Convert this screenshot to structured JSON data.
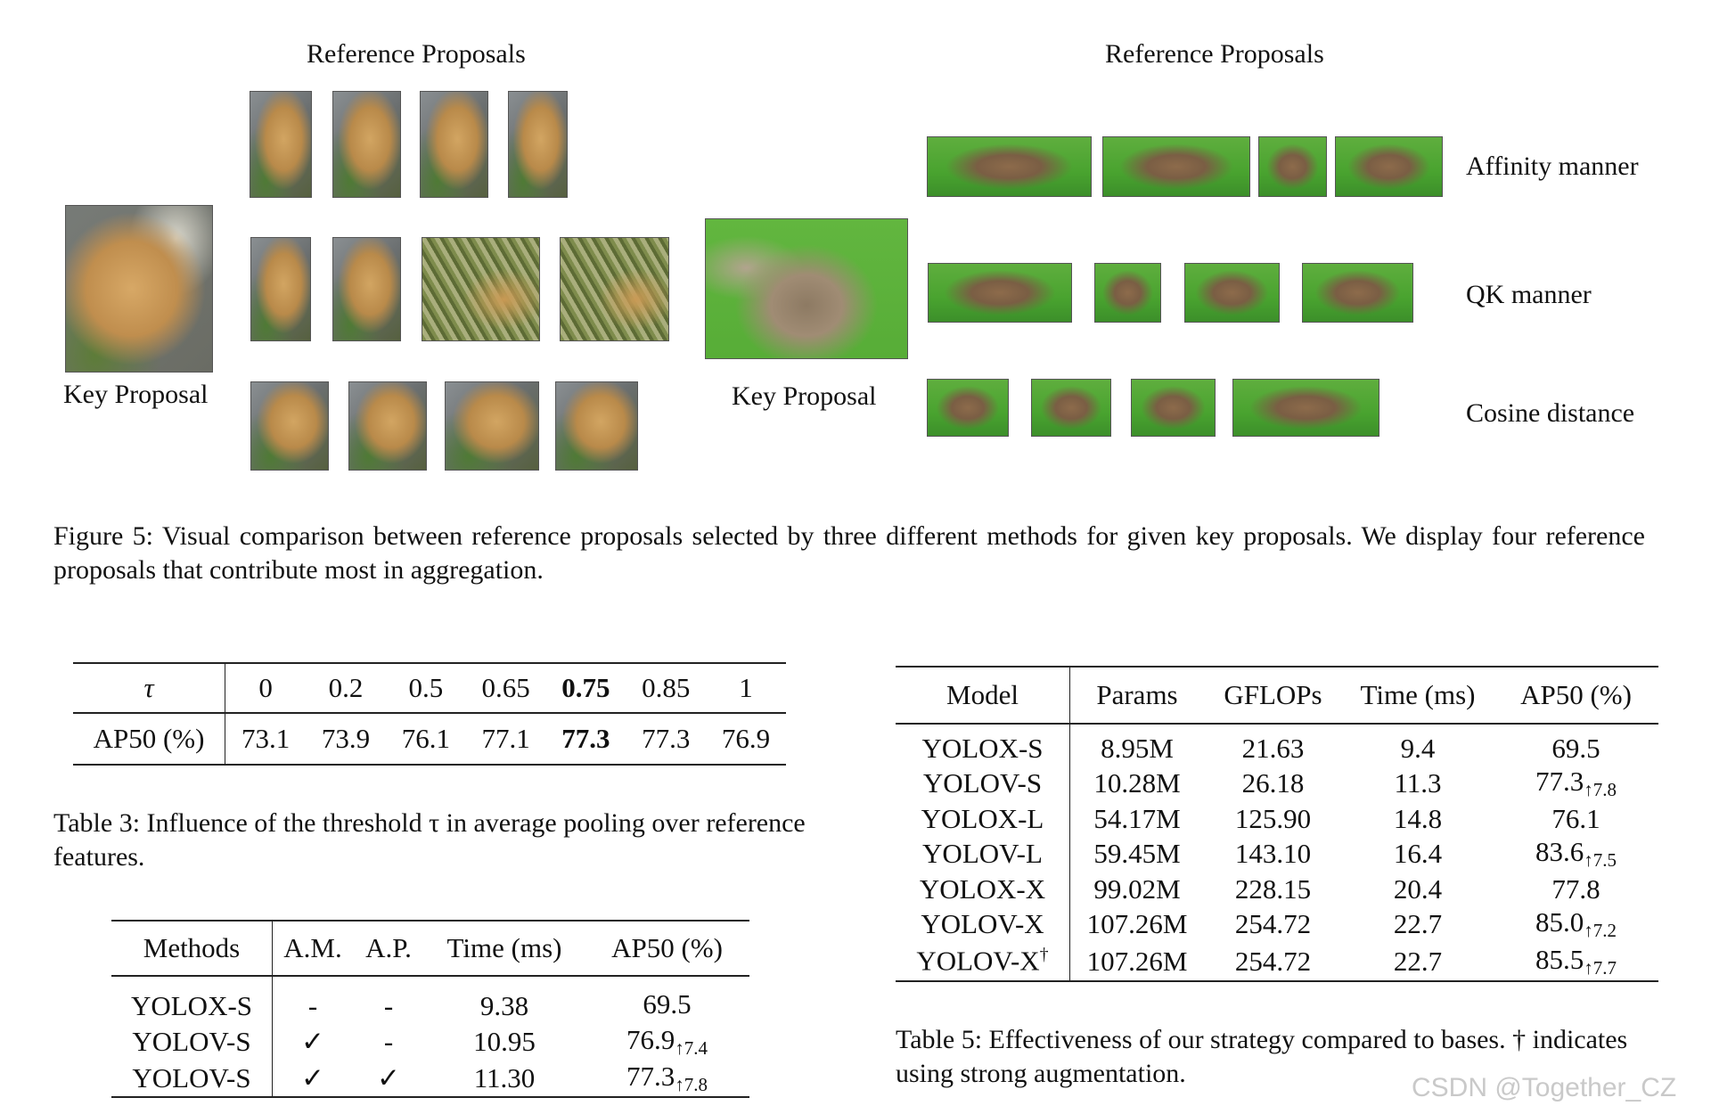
{
  "figure": {
    "left_panel": {
      "ref_title": "Reference Proposals",
      "key_label": "Key Proposal"
    },
    "right_panel": {
      "ref_title": "Reference Proposals",
      "key_label": "Key Proposal",
      "rows": [
        "Affinity manner",
        "QK manner",
        "Cosine distance"
      ]
    },
    "caption": "Figure 5: Visual comparison between reference proposals selected by three different methods for given key proposals. We display four reference proposals that contribute most in aggregation."
  },
  "table3": {
    "header_label": "τ",
    "row_label": "AP50 (%)",
    "taus": [
      "0",
      "0.2",
      "0.5",
      "0.65",
      "0.75",
      "0.85",
      "1"
    ],
    "ap50": [
      "73.1",
      "73.9",
      "76.1",
      "77.1",
      "77.3",
      "77.3",
      "76.9"
    ],
    "caption": "Table 3: Influence of the threshold τ in average pooling over reference features."
  },
  "table4": {
    "headers": [
      "Methods",
      "A.M.",
      "A.P.",
      "Time (ms)",
      "AP50 (%)"
    ],
    "rows": [
      {
        "method": "YOLOX-S",
        "am": "-",
        "ap": "-",
        "time": "9.38",
        "ap50": "69.5",
        "gain": ""
      },
      {
        "method": "YOLOV-S",
        "am": "✓",
        "ap": "-",
        "time": "10.95",
        "ap50": "76.9",
        "gain": "↑7.4"
      },
      {
        "method": "YOLOV-S",
        "am": "✓",
        "ap": "✓",
        "time": "11.30",
        "ap50": "77.3",
        "gain": "↑7.8"
      }
    ]
  },
  "table5": {
    "headers": [
      "Model",
      "Params",
      "GFLOPs",
      "Time (ms)",
      "AP50 (%)"
    ],
    "rows": [
      {
        "model": "YOLOX-S",
        "dagger": "",
        "params": "8.95M",
        "gflops": "21.63",
        "time": "9.4",
        "ap50": "69.5",
        "gain": ""
      },
      {
        "model": "YOLOV-S",
        "dagger": "",
        "params": "10.28M",
        "gflops": "26.18",
        "time": "11.3",
        "ap50": "77.3",
        "gain": "↑7.8"
      },
      {
        "model": "YOLOX-L",
        "dagger": "",
        "params": "54.17M",
        "gflops": "125.90",
        "time": "14.8",
        "ap50": "76.1",
        "gain": ""
      },
      {
        "model": "YOLOV-L",
        "dagger": "",
        "params": "59.45M",
        "gflops": "143.10",
        "time": "16.4",
        "ap50": "83.6",
        "gain": "↑7.5"
      },
      {
        "model": "YOLOX-X",
        "dagger": "",
        "params": "99.02M",
        "gflops": "228.15",
        "time": "20.4",
        "ap50": "77.8",
        "gain": ""
      },
      {
        "model": "YOLOV-X",
        "dagger": "",
        "params": "107.26M",
        "gflops": "254.72",
        "time": "22.7",
        "ap50": "85.0",
        "gain": "↑7.2"
      },
      {
        "model": "YOLOV-X",
        "dagger": "†",
        "params": "107.26M",
        "gflops": "254.72",
        "time": "22.7",
        "ap50": "85.5",
        "gain": "↑7.7"
      }
    ],
    "caption": "Table 5: Effectiveness of our strategy compared to bases. † indicates using strong augmentation."
  },
  "watermark": "CSDN @Together_CZ"
}
